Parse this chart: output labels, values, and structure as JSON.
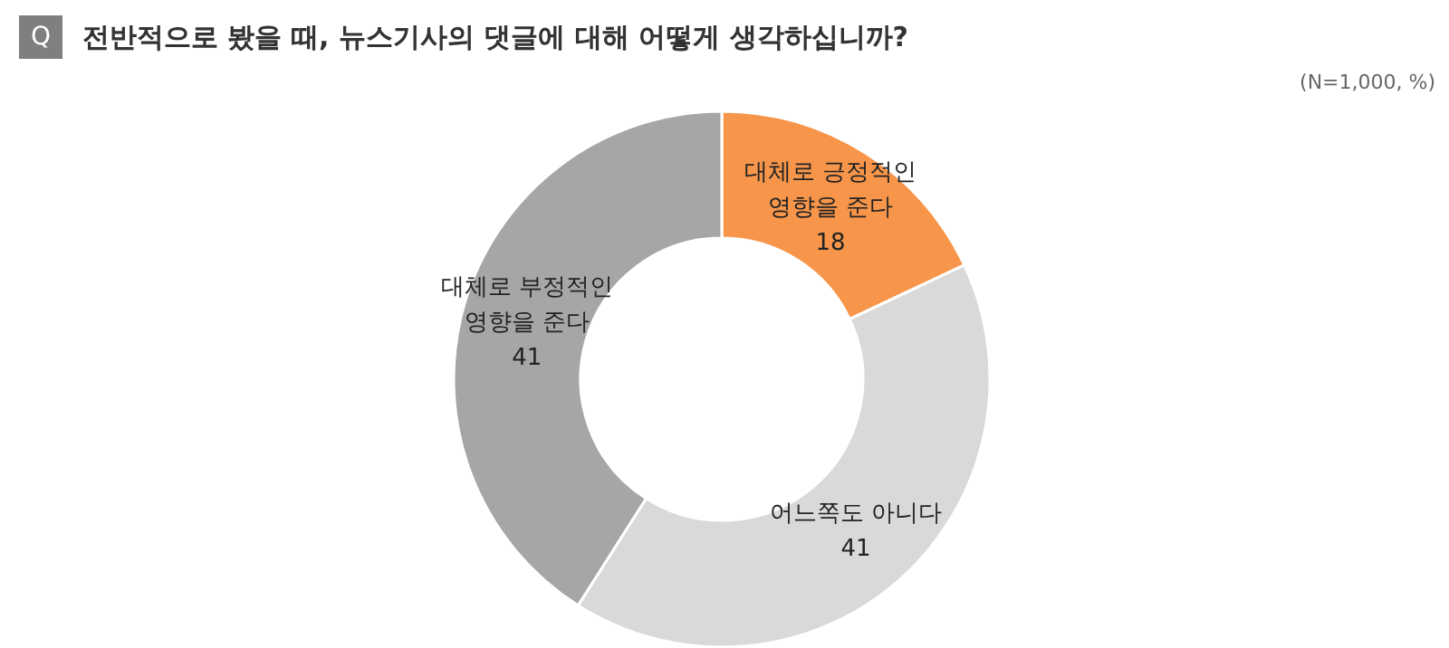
{
  "chart_data": {
    "type": "donut",
    "title": "전반적으로 봤을 때, 뉴스기사의 댓글에 대해 어떻게 생각하십니까?",
    "subtitle": "(N=1,000, %)",
    "annotations": [
      "Q"
    ],
    "categories": [
      "대체로 긍정적인\n영향을 준다",
      "어느쪽도 아니다",
      "대체로 부정적인\n영향을 준다"
    ],
    "values": [
      18,
      41,
      41
    ],
    "colors": [
      "#f7964b",
      "#d9d9d9",
      "#a6a6a6"
    ],
    "data_labels": true
  }
}
